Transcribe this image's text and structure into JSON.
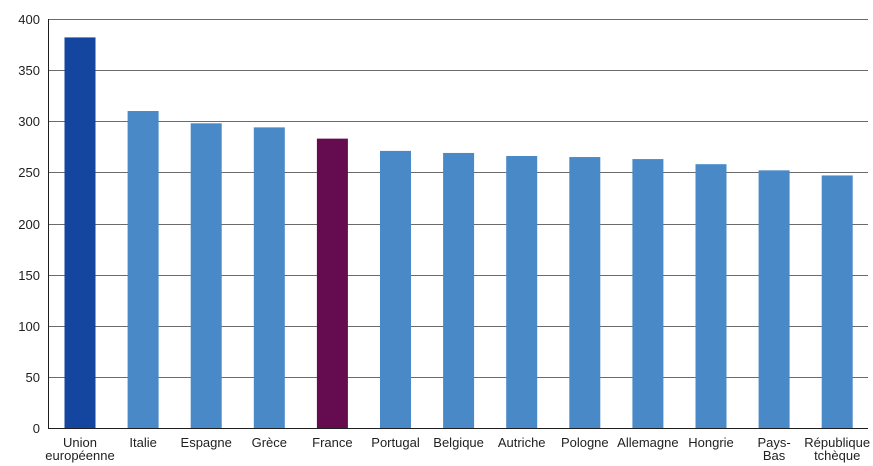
{
  "chart_data": {
    "type": "bar",
    "title": "",
    "xlabel": "",
    "ylabel": "",
    "ylim": [
      0,
      400
    ],
    "yticks": [
      0,
      50,
      100,
      150,
      200,
      250,
      300,
      350,
      400
    ],
    "grid": true,
    "categories": [
      "Union européenne",
      "Italie",
      "Espagne",
      "Grèce",
      "France",
      "Portugal",
      "Belgique",
      "Autriche",
      "Pologne",
      "Allemagne",
      "Hongrie",
      "Pays-Bas",
      "République tchèque"
    ],
    "category_label_lines": [
      [
        "Union",
        "européenne"
      ],
      [
        "Italie"
      ],
      [
        "Espagne"
      ],
      [
        "Grèce"
      ],
      [
        "France"
      ],
      [
        "Portugal"
      ],
      [
        "Belgique"
      ],
      [
        "Autriche"
      ],
      [
        "Pologne"
      ],
      [
        "Allemagne"
      ],
      [
        "Hongrie"
      ],
      [
        "Pays-",
        "Bas"
      ],
      [
        "République",
        "tchèque"
      ]
    ],
    "values": [
      382,
      310,
      298,
      294,
      283,
      271,
      269,
      266,
      265,
      263,
      258,
      252,
      247
    ],
    "bar_colors": [
      "#1446a0",
      "#4a89c8",
      "#4a89c8",
      "#4a89c8",
      "#650b4f",
      "#4a89c8",
      "#4a89c8",
      "#4a89c8",
      "#4a89c8",
      "#4a89c8",
      "#4a89c8",
      "#4a89c8",
      "#4a89c8"
    ],
    "colors": {
      "eu": "#1446a0",
      "default": "#4a89c8",
      "highlight": "#650b4f",
      "grid": "#3a3a3a",
      "axis": "#1f1f1f"
    }
  }
}
